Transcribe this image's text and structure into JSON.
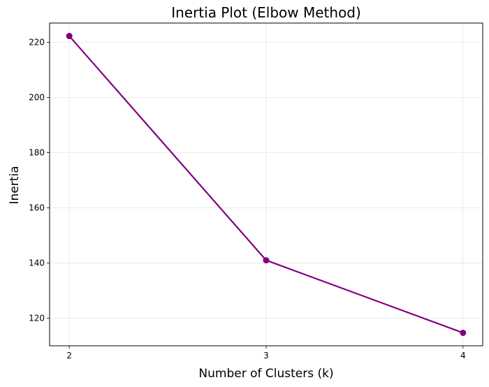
{
  "chart_data": {
    "type": "line",
    "title": "Inertia Plot (Elbow Method)",
    "xlabel": "Number of Clusters (k)",
    "ylabel": "Inertia",
    "x": [
      2,
      3,
      4
    ],
    "xticks": [
      2,
      3,
      4
    ],
    "yticks": [
      120,
      140,
      160,
      180,
      200,
      220
    ],
    "xlim": [
      1.9,
      4.1
    ],
    "ylim": [
      110,
      227
    ],
    "grid": true,
    "marker": "circle",
    "series": [
      {
        "values": [
          222.3,
          141.0,
          114.7
        ],
        "color": "#800080"
      }
    ]
  }
}
